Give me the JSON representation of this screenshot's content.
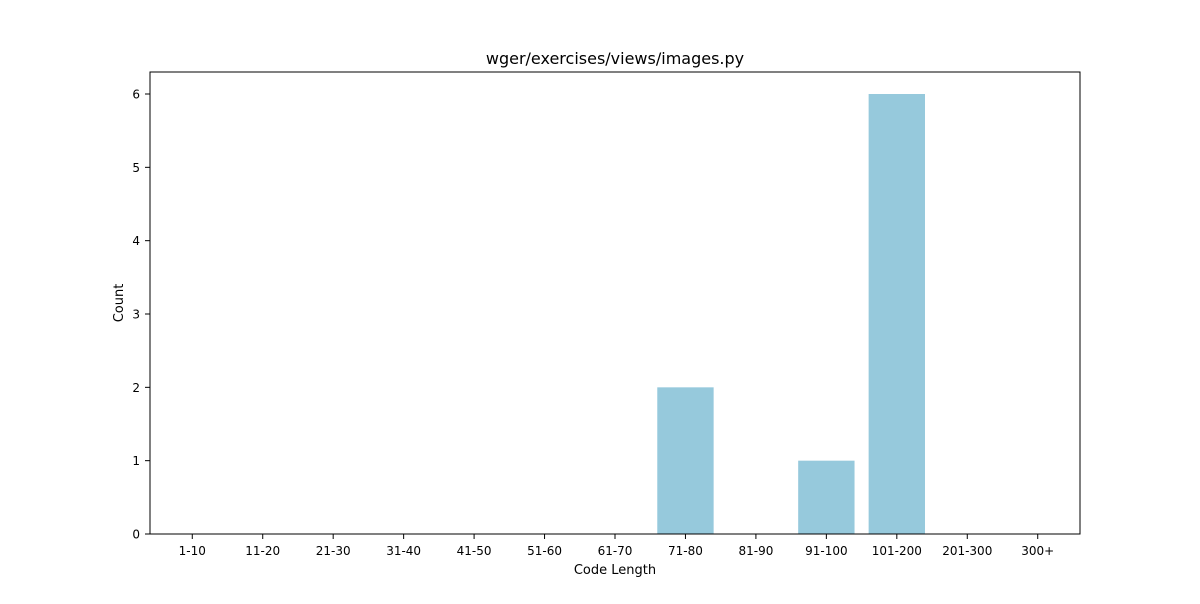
{
  "chart_data": {
    "type": "bar",
    "title": "wger/exercises/views/images.py",
    "xlabel": "Code Length",
    "ylabel": "Count",
    "categories": [
      "1-10",
      "11-20",
      "21-30",
      "31-40",
      "41-50",
      "51-60",
      "61-70",
      "71-80",
      "81-90",
      "91-100",
      "101-200",
      "201-300",
      "300+"
    ],
    "values": [
      0,
      0,
      0,
      0,
      0,
      0,
      0,
      2,
      0,
      1,
      6,
      0,
      0
    ],
    "ylim": [
      0,
      6.3
    ],
    "yticks": [
      0,
      1,
      2,
      3,
      4,
      5,
      6
    ],
    "bar_color": "#96c9dc",
    "grid": false,
    "legend": false
  }
}
